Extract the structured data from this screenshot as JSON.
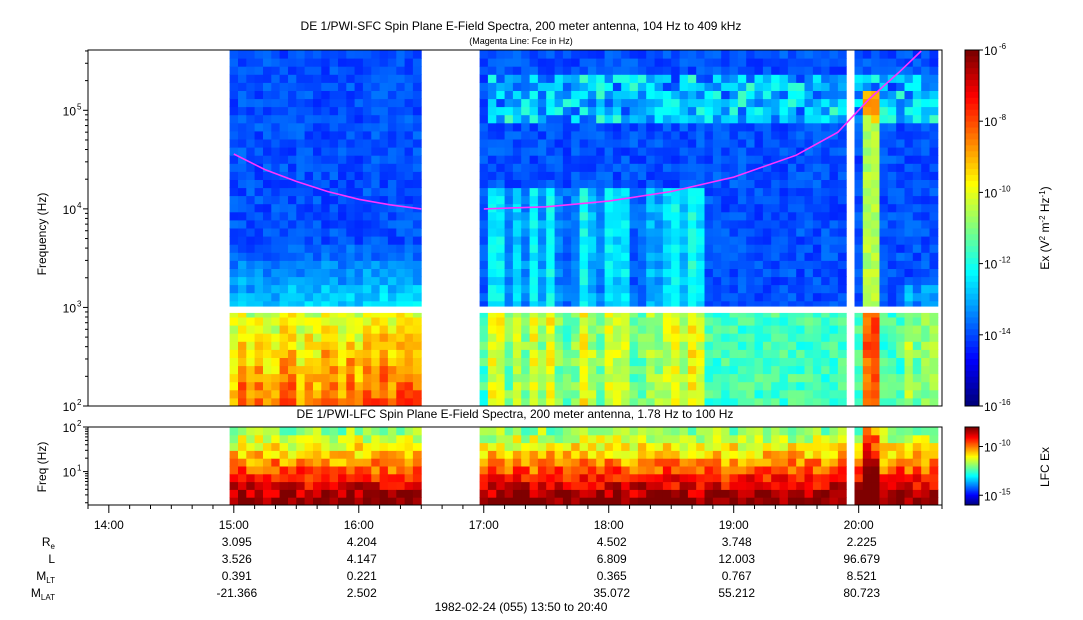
{
  "colors": {
    "colormap": [
      "#00007f",
      "#0000ff",
      "#0080ff",
      "#00ffff",
      "#7fff7f",
      "#ffff00",
      "#ff8000",
      "#ff0000",
      "#7f0000"
    ],
    "fce_line": "#ff33ff",
    "gap": "#ffffff"
  },
  "chart_data": [
    {
      "id": "sfc",
      "type": "heatmap",
      "title": "DE 1/PWI-SFC  Spin Plane E-Field Spectra, 200 meter antenna, 104 Hz to 409 kHz",
      "subtitle": "(Magenta Line: Fce in Hz)",
      "ylabel": "Frequency (Hz)",
      "yscale": "log",
      "ylim": [
        100,
        409000
      ],
      "yticks": [
        {
          "value": 100,
          "base": "10",
          "exp": "2"
        },
        {
          "value": 1000,
          "base": "10",
          "exp": "3"
        },
        {
          "value": 10000,
          "base": "10",
          "exp": "4"
        },
        {
          "value": 100000,
          "base": "10",
          "exp": "5"
        }
      ],
      "colorbar": {
        "label_parts": [
          "Ex (V",
          "2",
          " m",
          "-2",
          " Hz",
          "-1",
          ")"
        ],
        "scale": "log",
        "range": [
          1e-16,
          1e-06
        ],
        "ticks": [
          {
            "value": 1e-06,
            "base": "10",
            "exp": "-6"
          },
          {
            "value": 1e-08,
            "base": "10",
            "exp": "-8"
          },
          {
            "value": 1e-10,
            "base": "10",
            "exp": "-10"
          },
          {
            "value": 1e-12,
            "base": "10",
            "exp": "-12"
          },
          {
            "value": 1e-14,
            "base": "10",
            "exp": "-14"
          },
          {
            "value": 1e-16,
            "base": "10",
            "exp": "-16"
          }
        ]
      },
      "data_intervals": [
        [
          "14:59",
          "16:09"
        ],
        [
          "16:11",
          "16:32"
        ],
        [
          "17:00",
          "19:55"
        ],
        [
          "19:57",
          "20:37"
        ]
      ],
      "missing_band_hz": [
        880,
        1020
      ],
      "fce_line": [
        {
          "t": "15:00",
          "f": 36000
        },
        {
          "t": "15:15",
          "f": 25000
        },
        {
          "t": "15:30",
          "f": 19000
        },
        {
          "t": "15:45",
          "f": 15000
        },
        {
          "t": "16:00",
          "f": 12500
        },
        {
          "t": "16:15",
          "f": 11000
        },
        {
          "t": "16:30",
          "f": 10000
        },
        {
          "t": "17:00",
          "f": 10000
        },
        {
          "t": "17:30",
          "f": 10500
        },
        {
          "t": "18:00",
          "f": 12000
        },
        {
          "t": "18:30",
          "f": 15000
        },
        {
          "t": "19:00",
          "f": 21000
        },
        {
          "t": "19:30",
          "f": 35000
        },
        {
          "t": "19:50",
          "f": 60000
        },
        {
          "t": "20:05",
          "f": 130000
        },
        {
          "t": "20:20",
          "f": 250000
        },
        {
          "t": "20:30",
          "f": 400000
        }
      ]
    },
    {
      "id": "lfc",
      "type": "heatmap",
      "title": "DE 1/PWI-LFC  Spin Plane E-Field Spectra, 200 meter antenna, 1.78 Hz to 100 Hz",
      "ylabel": "Freq (Hz)",
      "yscale": "log",
      "ylim": [
        1.78,
        100
      ],
      "yticks": [
        {
          "value": 10,
          "base": "10",
          "exp": "1"
        },
        {
          "value": 100,
          "base": "10",
          "exp": "2"
        }
      ],
      "colorbar": {
        "label": "LFC Ex",
        "scale": "log",
        "range": [
          1e-16,
          1e-08
        ],
        "ticks": [
          {
            "value": 1e-10,
            "base": "10",
            "exp": "-10"
          },
          {
            "value": 1e-15,
            "base": "10",
            "exp": "-15"
          }
        ]
      },
      "data_intervals": [
        [
          "14:59",
          "16:32"
        ],
        [
          "17:00",
          "19:55"
        ],
        [
          "19:57",
          "20:37"
        ]
      ]
    }
  ],
  "time_axis": {
    "start": "13:50",
    "end": "20:40",
    "ticks": [
      "14:00",
      "15:00",
      "16:00",
      "17:00",
      "18:00",
      "19:00",
      "20:00"
    ]
  },
  "ephemeris": {
    "rows": [
      {
        "label": "R",
        "sub": "e",
        "values": {
          "15:00": "3.095",
          "16:00": "4.204",
          "18:00": "4.502",
          "19:00": "3.748",
          "20:00": "2.225"
        }
      },
      {
        "label": "L",
        "sub": "",
        "values": {
          "15:00": "3.526",
          "16:00": "4.147",
          "18:00": "6.809",
          "19:00": "12.003",
          "20:00": "96.679"
        }
      },
      {
        "label": "M",
        "sub": "LT",
        "values": {
          "15:00": "0.391",
          "16:00": "0.221",
          "18:00": "0.365",
          "19:00": "0.767",
          "20:00": "8.521"
        }
      },
      {
        "label": "M",
        "sub": "LAT",
        "values": {
          "15:00": "-21.366",
          "16:00": "2.502",
          "18:00": "35.072",
          "19:00": "55.212",
          "20:00": "80.723"
        }
      }
    ]
  },
  "footer": "1982-02-24 (055) 13:50 to 20:40"
}
